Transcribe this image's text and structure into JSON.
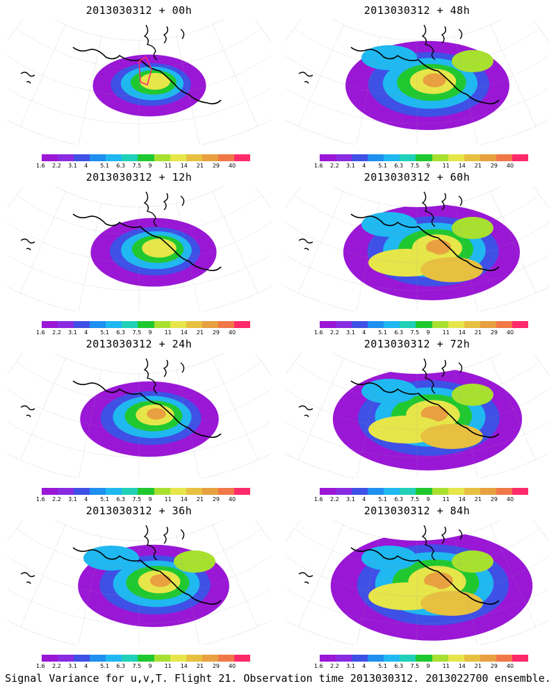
{
  "caption": "Signal Variance for u,v,T. Flight 21. Observation time 2013030312. 2013022700 ensemble.",
  "colorbar": {
    "colors": [
      "#9a17d6",
      "#8a2be2",
      "#3f50e6",
      "#1f8ff0",
      "#1fb8f0",
      "#20d0b8",
      "#20c830",
      "#a8e030",
      "#e6e64a",
      "#e8c040",
      "#e8a040",
      "#f07848",
      "#ff2a6a"
    ],
    "labels": [
      "1.6",
      "2.2",
      "3.1",
      "4",
      "5.1",
      "6.3",
      "7.5",
      "9",
      "11",
      "14",
      "21",
      "29",
      "40"
    ]
  },
  "panels": [
    {
      "title": "2013030312 + 00h",
      "level": 0
    },
    {
      "title": "2013030312 + 48h",
      "level": 4
    },
    {
      "title": "2013030312 + 12h",
      "level": 1
    },
    {
      "title": "2013030312 + 60h",
      "level": 5
    },
    {
      "title": "2013030312 + 24h",
      "level": 2
    },
    {
      "title": "2013030312 + 72h",
      "level": 6
    },
    {
      "title": "2013030312 + 36h",
      "level": 3
    },
    {
      "title": "2013030312 + 84h",
      "level": 7
    }
  ]
}
